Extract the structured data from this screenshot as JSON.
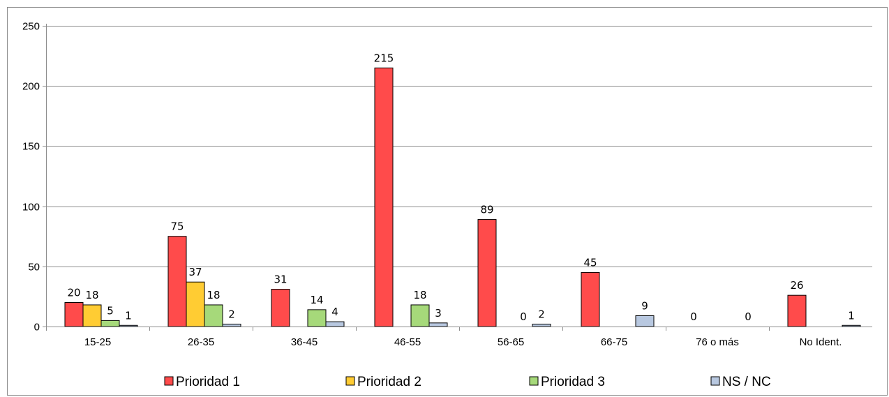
{
  "chart_data": {
    "type": "bar",
    "title": "",
    "xlabel": "",
    "ylabel": "",
    "ylim": [
      0,
      250
    ],
    "yticks": [
      0,
      50,
      100,
      150,
      200,
      250
    ],
    "grid": true,
    "legend_position": "bottom",
    "categories": [
      "15-25",
      "26-35",
      "36-45",
      "46-55",
      "56-65",
      "66-75",
      "76 o más",
      "No Ident."
    ],
    "series": [
      {
        "name": "Prioridad 1",
        "color": "#ff4b4b",
        "values": [
          20,
          75,
          31,
          215,
          89,
          45,
          0,
          26
        ]
      },
      {
        "name": "Prioridad 2",
        "color": "#ffcc33",
        "values": [
          18,
          37,
          0,
          0,
          0,
          0,
          0,
          0
        ]
      },
      {
        "name": "Prioridad 3",
        "color": "#a6d97a",
        "values": [
          5,
          18,
          14,
          18,
          0,
          0,
          0,
          0
        ]
      },
      {
        "name": "NS / NC",
        "color": "#b8c8e0",
        "values": [
          1,
          2,
          4,
          3,
          2,
          9,
          0,
          1
        ]
      }
    ],
    "data_labels": [
      {
        "category": "15-25",
        "series": "Prioridad 1",
        "text": "20"
      },
      {
        "category": "15-25",
        "series": "Prioridad 2",
        "text": "18"
      },
      {
        "category": "15-25",
        "series": "Prioridad 3",
        "text": "5"
      },
      {
        "category": "15-25",
        "series": "NS / NC",
        "text": "1"
      },
      {
        "category": "26-35",
        "series": "Prioridad 1",
        "text": "75"
      },
      {
        "category": "26-35",
        "series": "Prioridad 2",
        "text": "37"
      },
      {
        "category": "26-35",
        "series": "Prioridad 3",
        "text": "18"
      },
      {
        "category": "26-35",
        "series": "NS / NC",
        "text": "2"
      },
      {
        "category": "36-45",
        "series": "Prioridad 1",
        "text": "31"
      },
      {
        "category": "36-45",
        "series": "Prioridad 3",
        "text": "14"
      },
      {
        "category": "36-45",
        "series": "NS / NC",
        "text": "4"
      },
      {
        "category": "46-55",
        "series": "Prioridad 1",
        "text": "215"
      },
      {
        "category": "46-55",
        "series": "Prioridad 3",
        "text": "18"
      },
      {
        "category": "46-55",
        "series": "NS / NC",
        "text": "3"
      },
      {
        "category": "56-65",
        "series": "Prioridad 1",
        "text": "89"
      },
      {
        "category": "56-65",
        "series": "Prioridad 3",
        "text": "0"
      },
      {
        "category": "56-65",
        "series": "NS / NC",
        "text": "2"
      },
      {
        "category": "66-75",
        "series": "Prioridad 1",
        "text": "45"
      },
      {
        "category": "66-75",
        "series": "NS / NC",
        "text": "9"
      },
      {
        "category": "76 o más",
        "series": "Prioridad 1",
        "text": "0"
      },
      {
        "category": "76 o más",
        "series": "NS / NC",
        "text": "0"
      },
      {
        "category": "No Ident.",
        "series": "Prioridad 1",
        "text": "26"
      },
      {
        "category": "No Ident.",
        "series": "NS / NC",
        "text": "1"
      }
    ]
  }
}
